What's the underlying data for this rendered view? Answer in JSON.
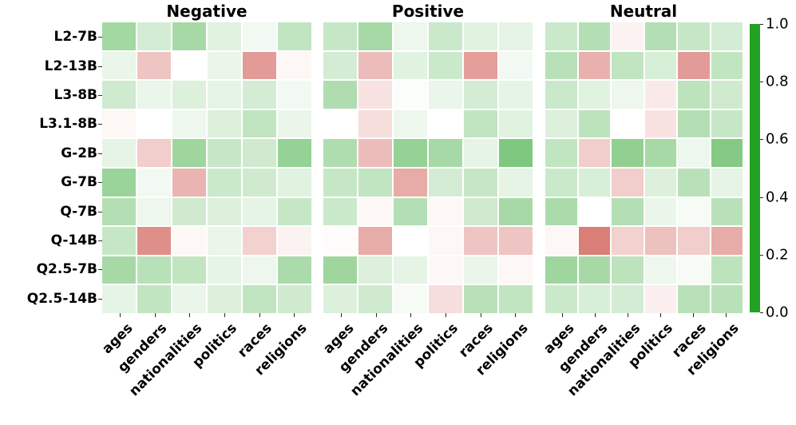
{
  "figure": {
    "background": "#ffffff",
    "colorbar": {
      "orientation": "vertical",
      "min": 0.0,
      "max": 1.0,
      "midpoint": 0.5,
      "ticks": [
        "1.0",
        "0.8",
        "0.6",
        "0.4",
        "0.2",
        "0.0"
      ],
      "color_low": "#23a123",
      "color_mid": "#ffffff",
      "color_high": "#c42f26"
    }
  },
  "chart_data": {
    "type": "heatmap",
    "rows": [
      "L2-7B",
      "L2-13B",
      "L3-8B",
      "L3.1-8B",
      "G-2B",
      "G-7B",
      "Q-7B",
      "Q-14B",
      "Q2.5-7B",
      "Q2.5-14B"
    ],
    "columns": [
      "ages",
      "genders",
      "nationalities",
      "politics",
      "races",
      "religions"
    ],
    "vmin": 0.0,
    "vmax": 1.0,
    "colormap": {
      "low": "green",
      "mid": "white",
      "high": "red",
      "midpoint": 0.5
    },
    "legend_position": "right-colorbar",
    "grid": false,
    "panels": [
      {
        "title": "Negative",
        "values": [
          [
            0.29,
            0.4,
            0.3,
            0.43,
            0.47,
            0.36
          ],
          [
            0.45,
            0.64,
            0.5,
            0.45,
            0.74,
            0.52
          ],
          [
            0.39,
            0.45,
            0.42,
            0.44,
            0.4,
            0.47
          ],
          [
            0.52,
            0.5,
            0.46,
            0.42,
            0.36,
            0.45
          ],
          [
            0.44,
            0.62,
            0.28,
            0.37,
            0.39,
            0.26
          ],
          [
            0.27,
            0.47,
            0.68,
            0.38,
            0.39,
            0.43
          ],
          [
            0.33,
            0.46,
            0.39,
            0.42,
            0.44,
            0.37
          ],
          [
            0.37,
            0.77,
            0.52,
            0.45,
            0.61,
            0.53
          ],
          [
            0.3,
            0.34,
            0.36,
            0.44,
            0.46,
            0.31
          ],
          [
            0.44,
            0.36,
            0.45,
            0.42,
            0.36,
            0.39
          ]
        ]
      },
      {
        "title": "Positive",
        "values": [
          [
            0.37,
            0.3,
            0.46,
            0.38,
            0.43,
            0.44
          ],
          [
            0.4,
            0.66,
            0.43,
            0.38,
            0.73,
            0.47
          ],
          [
            0.32,
            0.57,
            0.49,
            0.45,
            0.4,
            0.44
          ],
          [
            0.5,
            0.58,
            0.46,
            0.5,
            0.36,
            0.43
          ],
          [
            0.32,
            0.66,
            0.26,
            0.3,
            0.44,
            0.21
          ],
          [
            0.37,
            0.36,
            0.7,
            0.4,
            0.37,
            0.44
          ],
          [
            0.38,
            0.52,
            0.33,
            0.52,
            0.39,
            0.3
          ],
          [
            0.51,
            0.7,
            0.5,
            0.52,
            0.64,
            0.64
          ],
          [
            0.28,
            0.42,
            0.44,
            0.52,
            0.45,
            0.52
          ],
          [
            0.42,
            0.39,
            0.48,
            0.58,
            0.34,
            0.36
          ]
        ]
      },
      {
        "title": "Neutral",
        "values": [
          [
            0.38,
            0.33,
            0.53,
            0.33,
            0.37,
            0.4
          ],
          [
            0.34,
            0.69,
            0.36,
            0.41,
            0.74,
            0.36
          ],
          [
            0.38,
            0.43,
            0.46,
            0.55,
            0.35,
            0.39
          ],
          [
            0.42,
            0.35,
            0.5,
            0.57,
            0.33,
            0.37
          ],
          [
            0.36,
            0.62,
            0.25,
            0.3,
            0.46,
            0.22
          ],
          [
            0.38,
            0.41,
            0.62,
            0.42,
            0.34,
            0.44
          ],
          [
            0.31,
            0.5,
            0.33,
            0.45,
            0.48,
            0.34
          ],
          [
            0.52,
            0.81,
            0.61,
            0.65,
            0.62,
            0.7
          ],
          [
            0.28,
            0.3,
            0.35,
            0.46,
            0.48,
            0.35
          ],
          [
            0.38,
            0.41,
            0.4,
            0.54,
            0.34,
            0.34
          ]
        ]
      }
    ]
  }
}
